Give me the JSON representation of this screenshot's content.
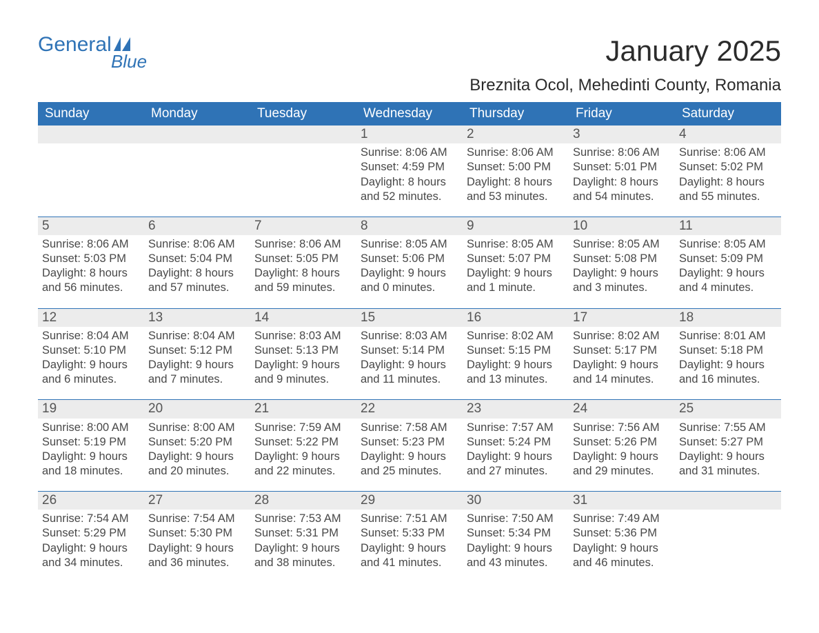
{
  "logo": {
    "text1": "General",
    "text2": "Blue"
  },
  "title": "January 2025",
  "location": "Breznita Ocol, Mehedinti County, Romania",
  "colors": {
    "brand": "#2f73b6",
    "header_text": "#ffffff",
    "daynum_bg": "#ececec",
    "body_text": "#484848",
    "background": "#ffffff"
  },
  "typography": {
    "family": "Arial",
    "title_size_pt": 32,
    "location_size_pt": 18,
    "dow_size_pt": 14,
    "cell_size_pt": 12
  },
  "layout": {
    "columns": 7,
    "rows": 5,
    "start_day_index": 3
  },
  "days_of_week": [
    "Sunday",
    "Monday",
    "Tuesday",
    "Wednesday",
    "Thursday",
    "Friday",
    "Saturday"
  ],
  "weeks": [
    [
      null,
      null,
      null,
      {
        "n": "1",
        "sunrise": "8:06 AM",
        "sunset": "4:59 PM",
        "dl1": "8 hours",
        "dl2": "and 52 minutes."
      },
      {
        "n": "2",
        "sunrise": "8:06 AM",
        "sunset": "5:00 PM",
        "dl1": "8 hours",
        "dl2": "and 53 minutes."
      },
      {
        "n": "3",
        "sunrise": "8:06 AM",
        "sunset": "5:01 PM",
        "dl1": "8 hours",
        "dl2": "and 54 minutes."
      },
      {
        "n": "4",
        "sunrise": "8:06 AM",
        "sunset": "5:02 PM",
        "dl1": "8 hours",
        "dl2": "and 55 minutes."
      }
    ],
    [
      {
        "n": "5",
        "sunrise": "8:06 AM",
        "sunset": "5:03 PM",
        "dl1": "8 hours",
        "dl2": "and 56 minutes."
      },
      {
        "n": "6",
        "sunrise": "8:06 AM",
        "sunset": "5:04 PM",
        "dl1": "8 hours",
        "dl2": "and 57 minutes."
      },
      {
        "n": "7",
        "sunrise": "8:06 AM",
        "sunset": "5:05 PM",
        "dl1": "8 hours",
        "dl2": "and 59 minutes."
      },
      {
        "n": "8",
        "sunrise": "8:05 AM",
        "sunset": "5:06 PM",
        "dl1": "9 hours",
        "dl2": "and 0 minutes."
      },
      {
        "n": "9",
        "sunrise": "8:05 AM",
        "sunset": "5:07 PM",
        "dl1": "9 hours",
        "dl2": "and 1 minute."
      },
      {
        "n": "10",
        "sunrise": "8:05 AM",
        "sunset": "5:08 PM",
        "dl1": "9 hours",
        "dl2": "and 3 minutes."
      },
      {
        "n": "11",
        "sunrise": "8:05 AM",
        "sunset": "5:09 PM",
        "dl1": "9 hours",
        "dl2": "and 4 minutes."
      }
    ],
    [
      {
        "n": "12",
        "sunrise": "8:04 AM",
        "sunset": "5:10 PM",
        "dl1": "9 hours",
        "dl2": "and 6 minutes."
      },
      {
        "n": "13",
        "sunrise": "8:04 AM",
        "sunset": "5:12 PM",
        "dl1": "9 hours",
        "dl2": "and 7 minutes."
      },
      {
        "n": "14",
        "sunrise": "8:03 AM",
        "sunset": "5:13 PM",
        "dl1": "9 hours",
        "dl2": "and 9 minutes."
      },
      {
        "n": "15",
        "sunrise": "8:03 AM",
        "sunset": "5:14 PM",
        "dl1": "9 hours",
        "dl2": "and 11 minutes."
      },
      {
        "n": "16",
        "sunrise": "8:02 AM",
        "sunset": "5:15 PM",
        "dl1": "9 hours",
        "dl2": "and 13 minutes."
      },
      {
        "n": "17",
        "sunrise": "8:02 AM",
        "sunset": "5:17 PM",
        "dl1": "9 hours",
        "dl2": "and 14 minutes."
      },
      {
        "n": "18",
        "sunrise": "8:01 AM",
        "sunset": "5:18 PM",
        "dl1": "9 hours",
        "dl2": "and 16 minutes."
      }
    ],
    [
      {
        "n": "19",
        "sunrise": "8:00 AM",
        "sunset": "5:19 PM",
        "dl1": "9 hours",
        "dl2": "and 18 minutes."
      },
      {
        "n": "20",
        "sunrise": "8:00 AM",
        "sunset": "5:20 PM",
        "dl1": "9 hours",
        "dl2": "and 20 minutes."
      },
      {
        "n": "21",
        "sunrise": "7:59 AM",
        "sunset": "5:22 PM",
        "dl1": "9 hours",
        "dl2": "and 22 minutes."
      },
      {
        "n": "22",
        "sunrise": "7:58 AM",
        "sunset": "5:23 PM",
        "dl1": "9 hours",
        "dl2": "and 25 minutes."
      },
      {
        "n": "23",
        "sunrise": "7:57 AM",
        "sunset": "5:24 PM",
        "dl1": "9 hours",
        "dl2": "and 27 minutes."
      },
      {
        "n": "24",
        "sunrise": "7:56 AM",
        "sunset": "5:26 PM",
        "dl1": "9 hours",
        "dl2": "and 29 minutes."
      },
      {
        "n": "25",
        "sunrise": "7:55 AM",
        "sunset": "5:27 PM",
        "dl1": "9 hours",
        "dl2": "and 31 minutes."
      }
    ],
    [
      {
        "n": "26",
        "sunrise": "7:54 AM",
        "sunset": "5:29 PM",
        "dl1": "9 hours",
        "dl2": "and 34 minutes."
      },
      {
        "n": "27",
        "sunrise": "7:54 AM",
        "sunset": "5:30 PM",
        "dl1": "9 hours",
        "dl2": "and 36 minutes."
      },
      {
        "n": "28",
        "sunrise": "7:53 AM",
        "sunset": "5:31 PM",
        "dl1": "9 hours",
        "dl2": "and 38 minutes."
      },
      {
        "n": "29",
        "sunrise": "7:51 AM",
        "sunset": "5:33 PM",
        "dl1": "9 hours",
        "dl2": "and 41 minutes."
      },
      {
        "n": "30",
        "sunrise": "7:50 AM",
        "sunset": "5:34 PM",
        "dl1": "9 hours",
        "dl2": "and 43 minutes."
      },
      {
        "n": "31",
        "sunrise": "7:49 AM",
        "sunset": "5:36 PM",
        "dl1": "9 hours",
        "dl2": "and 46 minutes."
      },
      null
    ]
  ],
  "labels": {
    "sunrise": "Sunrise: ",
    "sunset": "Sunset: ",
    "daylight": "Daylight: "
  }
}
